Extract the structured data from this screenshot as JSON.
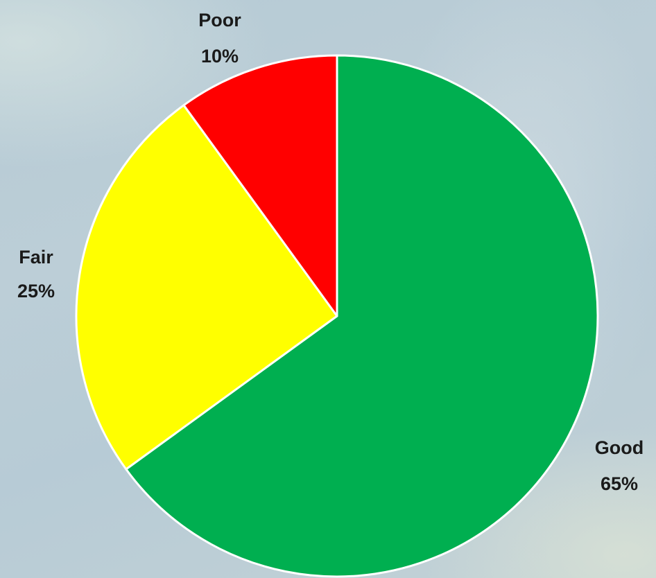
{
  "chart_data": {
    "type": "pie",
    "title": "",
    "start_angle_deg": 0,
    "direction": "clockwise",
    "legend": "none",
    "slices": [
      {
        "label": "Good",
        "value": 65,
        "percent_label": "65%",
        "color": "#00AF50"
      },
      {
        "label": "Fair",
        "value": 25,
        "percent_label": "25%",
        "color": "#FFFF00"
      },
      {
        "label": "Poor",
        "value": 10,
        "percent_label": "10%",
        "color": "#FF0000"
      }
    ]
  }
}
